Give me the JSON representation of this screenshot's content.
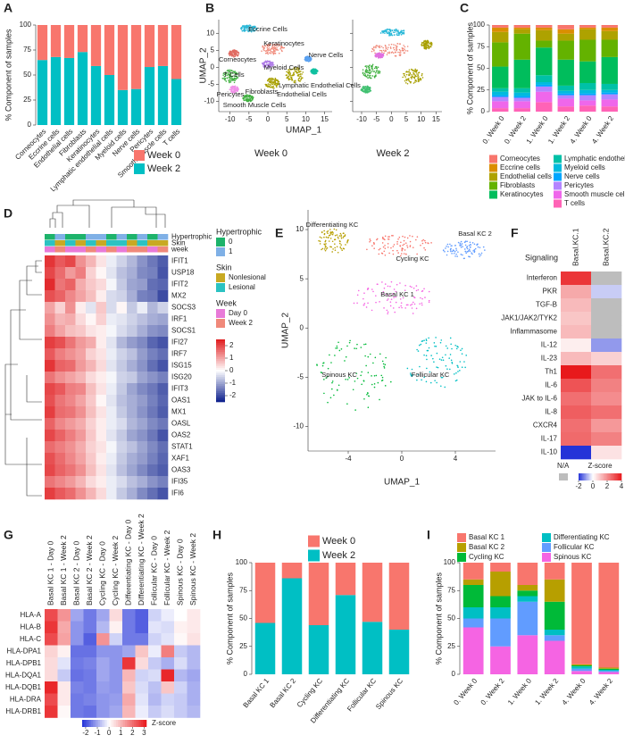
{
  "chart_data": [
    {
      "panel_label": "A",
      "type": "stacked_bar",
      "ylabel": "% Component of samples",
      "categories": [
        "Corneocytes",
        "Eccrine cells",
        "Endothelial cells",
        "Fibroblasts",
        "Keratinocytes",
        "Lymphatic endothelial cells",
        "Myeloid cells",
        "Nerve cells",
        "Pericytes",
        "Smooth muscle cells",
        "T cells"
      ],
      "series": [
        {
          "name": "Week 0",
          "color": "#f8766d",
          "values": [
            35,
            32,
            33,
            27,
            41,
            50,
            65,
            64,
            42,
            41,
            54
          ]
        },
        {
          "name": "Week 2",
          "color": "#00bfc4",
          "values": [
            65,
            68,
            67,
            73,
            59,
            50,
            35,
            36,
            58,
            59,
            46
          ]
        }
      ],
      "ylim": [
        0,
        100
      ],
      "yticks": [
        0,
        25,
        50,
        75,
        100
      ]
    },
    {
      "panel_label": "B",
      "type": "umap",
      "xlabel": "UMAP_1",
      "ylabel": "UMAP_2",
      "facets": [
        "Week 0",
        "Week 2"
      ],
      "xlim": [
        -13,
        17
      ],
      "xticks": [
        -10,
        -5,
        0,
        5,
        10,
        15
      ],
      "ylim": [
        -13,
        14
      ],
      "yticks": [
        -10,
        -5,
        0,
        5,
        10
      ],
      "labels": [
        "Eccrine Cells",
        "Keratinocytes",
        "Corneocytes",
        "Nerve Cells",
        "Myeloid Cells",
        "T Cells",
        "Lymphatic Endothelial Cells",
        "Pericytes",
        "Fibroblasts",
        "Endothelial Cells",
        "Smooth Muscle Cells"
      ]
    },
    {
      "panel_label": "C",
      "type": "stacked_bar",
      "ylabel": "% Component of samples",
      "categories": [
        "0. Week 0",
        "0. Week 2",
        "1. Week 0",
        "1. Week 2",
        "4. Week 0",
        "4. Week 2"
      ],
      "series": [
        {
          "name": "Corneocytes",
          "color": "#f8766d",
          "values": [
            3,
            3,
            3,
            5,
            3,
            3
          ]
        },
        {
          "name": "Eccrine cells",
          "color": "#db8e00",
          "values": [
            5,
            2,
            3,
            5,
            2,
            4
          ]
        },
        {
          "name": "Endothelial cells",
          "color": "#aea200",
          "values": [
            12,
            5,
            12,
            8,
            12,
            10
          ]
        },
        {
          "name": "Fibroblasts",
          "color": "#64b200",
          "values": [
            28,
            30,
            8,
            22,
            25,
            20
          ]
        },
        {
          "name": "Keratinocytes",
          "color": "#00bd5c",
          "values": [
            25,
            33,
            32,
            30,
            25,
            31
          ]
        },
        {
          "name": "Lymphatic endothelial",
          "color": "#00c1a7",
          "values": [
            4,
            5,
            8,
            6,
            8,
            7
          ]
        },
        {
          "name": "Myeloid cells",
          "color": "#00bade",
          "values": [
            4,
            4,
            3,
            3,
            4,
            3
          ]
        },
        {
          "name": "Nerve cells",
          "color": "#00a6ff",
          "values": [
            2,
            2,
            2,
            2,
            2,
            2
          ]
        },
        {
          "name": "Pericytes",
          "color": "#b385ff",
          "values": [
            5,
            4,
            6,
            4,
            6,
            6
          ]
        },
        {
          "name": "Smooth muscle cells",
          "color": "#ef67eb",
          "values": [
            8,
            8,
            12,
            9,
            6,
            8
          ]
        },
        {
          "name": "T cells",
          "color": "#ff63b6",
          "values": [
            4,
            4,
            11,
            6,
            7,
            6
          ]
        }
      ],
      "ylim": [
        0,
        100
      ],
      "yticks": [
        0,
        25,
        50,
        75,
        100
      ]
    },
    {
      "panel_label": "D",
      "type": "heatmap",
      "rows": [
        "IFIT1",
        "USP18",
        "IFIT2",
        "MX2",
        "SOCS3",
        "IRF1",
        "SOCS1",
        "IFI27",
        "IRF7",
        "ISG15",
        "ISG20",
        "IFIT3",
        "OAS1",
        "MX1",
        "OASL",
        "OAS2",
        "STAT1",
        "XAF1",
        "OAS3",
        "IFI35",
        "IFI6"
      ],
      "matrix": [
        [
          2.2,
          1.8,
          2.0,
          1.2,
          0.8,
          0.3,
          -0.2,
          -0.5,
          -0.8,
          -1.2,
          -1.5,
          -1.8
        ],
        [
          2.0,
          1.6,
          1.1,
          1.4,
          0.5,
          0.1,
          -0.3,
          -0.7,
          -0.9,
          -1.3,
          -1.4,
          -1.9
        ],
        [
          2.3,
          1.5,
          1.7,
          0.9,
          0.6,
          0.4,
          -0.1,
          -0.6,
          -1.0,
          -1.1,
          -1.6,
          -1.7
        ],
        [
          1.9,
          1.7,
          1.3,
          1.0,
          0.7,
          0.2,
          -0.4,
          -0.5,
          -0.9,
          -1.4,
          -1.5,
          -2.0
        ],
        [
          1.0,
          0.5,
          1.2,
          0.2,
          -0.3,
          0.6,
          -0.4,
          0.1,
          -0.6,
          -0.2,
          -0.8,
          -0.5
        ],
        [
          1.2,
          0.8,
          0.9,
          0.4,
          0.1,
          0.5,
          -0.2,
          -0.3,
          -0.5,
          -0.7,
          -0.9,
          -1.0
        ],
        [
          1.4,
          1.0,
          0.7,
          0.6,
          0.3,
          0.2,
          -0.1,
          -0.4,
          -0.6,
          -0.9,
          -1.2,
          -1.3
        ],
        [
          2.1,
          1.9,
          1.5,
          1.1,
          0.9,
          0.2,
          -0.3,
          -0.8,
          -1.1,
          -1.3,
          -1.7,
          -1.9
        ],
        [
          1.8,
          1.4,
          1.2,
          1.0,
          0.5,
          0.3,
          -0.2,
          -0.5,
          -0.7,
          -1.1,
          -1.4,
          -1.6
        ],
        [
          2.2,
          1.7,
          1.6,
          1.1,
          0.8,
          0.4,
          -0.3,
          -0.6,
          -0.9,
          -1.2,
          -1.6,
          -1.9
        ],
        [
          1.5,
          1.2,
          1.0,
          0.8,
          0.4,
          0.2,
          -0.1,
          -0.5,
          -0.6,
          -1.0,
          -1.2,
          -1.4
        ],
        [
          2.0,
          1.8,
          1.4,
          1.3,
          0.7,
          0.3,
          -0.2,
          -0.6,
          -1.0,
          -1.3,
          -1.5,
          -1.8
        ],
        [
          1.9,
          1.5,
          1.3,
          1.0,
          0.6,
          0.1,
          -0.3,
          -0.7,
          -0.9,
          -1.1,
          -1.4,
          -1.7
        ],
        [
          2.1,
          1.6,
          1.5,
          1.2,
          0.7,
          0.3,
          -0.2,
          -0.6,
          -0.9,
          -1.2,
          -1.5,
          -1.8
        ],
        [
          1.7,
          1.3,
          1.1,
          0.9,
          0.5,
          0.2,
          -0.2,
          -0.4,
          -0.8,
          -1.0,
          -1.3,
          -1.5
        ],
        [
          2.0,
          1.7,
          1.4,
          1.1,
          0.6,
          0.2,
          -0.3,
          -0.6,
          -1.0,
          -1.2,
          -1.5,
          -1.9
        ],
        [
          1.6,
          1.4,
          1.2,
          0.9,
          0.5,
          0.3,
          -0.1,
          -0.5,
          -0.7,
          -1.0,
          -1.3,
          -1.6
        ],
        [
          1.9,
          1.6,
          1.3,
          1.0,
          0.6,
          0.2,
          -0.2,
          -0.6,
          -0.9,
          -1.1,
          -1.4,
          -1.7
        ],
        [
          2.0,
          1.7,
          1.5,
          1.2,
          0.7,
          0.3,
          -0.3,
          -0.7,
          -1.0,
          -1.3,
          -1.6,
          -1.8
        ],
        [
          1.5,
          1.3,
          1.1,
          0.8,
          0.4,
          0.2,
          -0.2,
          -0.4,
          -0.7,
          -0.9,
          -1.2,
          -1.4
        ],
        [
          2.1,
          1.8,
          1.6,
          1.2,
          0.8,
          0.4,
          -0.2,
          -0.6,
          -0.9,
          -1.3,
          -1.6,
          -1.9
        ]
      ],
      "zlim": [
        -2.5,
        2.5
      ],
      "zticks": [
        2,
        1,
        0,
        -1,
        -2
      ],
      "low_color": "#0b1e8c",
      "high_color": "#e0191c",
      "annotations": [
        {
          "name": "Hypertrophic",
          "legend_title": "Hypertrophic",
          "levels": [
            "0",
            "1"
          ],
          "colors": [
            "#1db36b",
            "#7fb0e6"
          ],
          "values": [
            "0",
            "1",
            "0",
            "0",
            "1",
            "1",
            "0",
            "1",
            "0",
            "1",
            "0",
            "1"
          ]
        },
        {
          "name": "Skin",
          "legend_title": "Skin",
          "levels": [
            "Nonlesional",
            "Lesional"
          ],
          "colors": [
            "#c8a922",
            "#2bc2c2"
          ],
          "values": [
            "Lesional",
            "Nonlesional",
            "Lesional",
            "Nonlesional",
            "Lesional",
            "Nonlesional",
            "Lesional",
            "Lesional",
            "Nonlesional",
            "Lesional",
            "Nonlesional",
            "Nonlesional"
          ]
        },
        {
          "name": "week",
          "legend_title": "Week",
          "levels": [
            "Day 0",
            "Week 2"
          ],
          "colors": [
            "#e87ad8",
            "#f0897a"
          ],
          "values": [
            "Day 0",
            "Week 2",
            "Day 0",
            "Day 0",
            "Week 2",
            "Day 0",
            "Week 2",
            "Day 0",
            "Week 2",
            "Week 2",
            "Day 0",
            "Week 2"
          ]
        }
      ]
    },
    {
      "panel_label": "E",
      "type": "umap",
      "xlabel": "UMAP_1",
      "ylabel": "UMAP_2",
      "xlim": [
        -7,
        7
      ],
      "xticks": [
        -4,
        0,
        4
      ],
      "ylim": [
        -12.5,
        12
      ],
      "yticks": [
        -10,
        -5,
        0,
        5,
        10
      ],
      "labels": [
        "Differentiating KC",
        "Cycling KC",
        "Basal KC 2",
        "Basal KC 1",
        "Spinous KC",
        "Follicular KC"
      ]
    },
    {
      "panel_label": "F",
      "type": "heatmap",
      "row_header": "Signaling",
      "columns": [
        "Basal.KC.1",
        "Basal.KC.2"
      ],
      "rows": [
        "Interferon",
        "PKR",
        "TGF-B",
        "JAK1/JAK2/TYK2",
        "Inflammasome",
        "IL-12",
        "IL-23",
        "Th1",
        "IL-6",
        "JAK to IL-6",
        "IL-8",
        "CXCR4",
        "IL-17",
        "IL-10"
      ],
      "matrix": [
        [
          3.5,
          null
        ],
        [
          1.5,
          -0.5
        ],
        [
          1.2,
          null
        ],
        [
          1.0,
          null
        ],
        [
          1.2,
          null
        ],
        [
          0.3,
          -1.0
        ],
        [
          1.2,
          0.8
        ],
        [
          4.0,
          2.5
        ],
        [
          3.0,
          2.2
        ],
        [
          2.5,
          2.0
        ],
        [
          2.8,
          2.5
        ],
        [
          2.5,
          1.8
        ],
        [
          2.6,
          2.2
        ],
        [
          -2.5,
          0.5
        ]
      ],
      "zlim": [
        -2,
        4
      ],
      "zticks": [
        -2,
        0,
        2,
        4
      ],
      "colorbar_title": "Z-score",
      "na_label": "N/A",
      "na_color": "#bdbdbd",
      "low_color": "#2433d8",
      "high_color": "#e8191c"
    },
    {
      "panel_label": "G",
      "type": "heatmap",
      "columns": [
        "Basal KC 1 - Day 0",
        "Basal KC 1 - Week 2",
        "Basal KC 2 - Day 0",
        "Basal KC 2 - Week 2",
        "Cycling KC - Day 0",
        "Cycling KC - Week 2",
        "Differentiating KC - Day 0",
        "Differentiating KC - Week 2",
        "Follicular KC - Day 0",
        "Follicular KC - Week 2",
        "Spinous KC - Day 0",
        "Spinous KC - Week 2"
      ],
      "rows": [
        "HLA-A",
        "HLA-B",
        "HLA-C",
        "HLA-DPA1",
        "HLA-DPB1",
        "HLA-DQA1",
        "HLA-DQB1",
        "HLA-DRA",
        "HLA-DRB1"
      ],
      "matrix": [
        [
          2.5,
          1.5,
          -1,
          -1.5,
          -1,
          0.5,
          -1.5,
          -1.8,
          -0.5,
          -0.2,
          0,
          0.3
        ],
        [
          2.8,
          1.2,
          -1.2,
          -1.5,
          -0.8,
          0.2,
          -1.5,
          -1.8,
          -0.3,
          -0.4,
          0.2,
          0.3
        ],
        [
          2.5,
          1.3,
          -1.2,
          -1.8,
          1.5,
          -0.5,
          -1.5,
          -1.5,
          -0.5,
          -0.3,
          0.1,
          0.4
        ],
        [
          0.6,
          0.2,
          -1.6,
          -1.6,
          -1.2,
          -1.2,
          -1,
          0.8,
          -0.2,
          1.8,
          -0.6,
          -0.8
        ],
        [
          0.5,
          -0.3,
          -1.5,
          -1.4,
          -1,
          -1.2,
          2.8,
          0.5,
          -0.6,
          -0.9,
          -0.4,
          -0.8
        ],
        [
          0.5,
          -0.6,
          -1.6,
          -1.5,
          -1,
          -1.2,
          1,
          -0.5,
          -0.4,
          3,
          -0.8,
          -1
        ],
        [
          3,
          0.3,
          -1.4,
          -1.5,
          -1.1,
          -1.2,
          0.8,
          -0.4,
          -0.7,
          0.8,
          -0.5,
          -0.9
        ],
        [
          2.5,
          0.3,
          -1.5,
          -1.4,
          -1.2,
          -1.1,
          1.2,
          -0.3,
          -0.8,
          -0.5,
          -0.6,
          -0.9
        ],
        [
          2.8,
          0.1,
          -1.5,
          -1.6,
          -1.2,
          -1,
          1,
          -0.2,
          -0.6,
          -0.4,
          -0.6,
          -0.8
        ]
      ],
      "zlim": [
        -2.3,
        3.2
      ],
      "zticks": [
        -2,
        -1,
        0,
        1,
        2,
        3
      ],
      "colorbar_title": "Z-score",
      "low_color": "#2433d8",
      "high_color": "#e8191c"
    },
    {
      "panel_label": "H",
      "type": "stacked_bar",
      "ylabel": "% Component of samples",
      "categories": [
        "Basal KC 1",
        "Basal KC 2",
        "Cycling KC",
        "Differentiating KC",
        "Follicular KC",
        "Spinous KC"
      ],
      "series": [
        {
          "name": "Week 0",
          "color": "#f8766d",
          "values": [
            54,
            14,
            56,
            29,
            53,
            60
          ]
        },
        {
          "name": "Week 2",
          "color": "#00bfc4",
          "values": [
            46,
            86,
            44,
            71,
            47,
            40
          ]
        }
      ],
      "ylim": [
        0,
        100
      ],
      "yticks": [
        0,
        25,
        50,
        75,
        100
      ]
    },
    {
      "panel_label": "I",
      "type": "stacked_bar",
      "ylabel": "% Component of samples",
      "categories": [
        "0. Week 0",
        "0. Week 2",
        "1. Week 0",
        "1. Week 2",
        "4. Week 0",
        "4. Week 2"
      ],
      "series": [
        {
          "name": "Basal KC 1",
          "color": "#f8766d",
          "values": [
            15,
            8,
            20,
            15,
            91,
            94
          ]
        },
        {
          "name": "Basal KC 2",
          "color": "#b79f00",
          "values": [
            5,
            22,
            5,
            20,
            1,
            1
          ]
        },
        {
          "name": "Cycling KC",
          "color": "#00ba38",
          "values": [
            20,
            10,
            5,
            25,
            1,
            1
          ]
        },
        {
          "name": "Differentiating KC",
          "color": "#00bfc4",
          "values": [
            10,
            10,
            5,
            5,
            2,
            1
          ]
        },
        {
          "name": "Follicular KC",
          "color": "#619cff",
          "values": [
            8,
            25,
            30,
            5,
            2,
            1
          ]
        },
        {
          "name": "Spinous KC",
          "color": "#f564e3",
          "values": [
            42,
            25,
            35,
            30,
            3,
            2
          ]
        }
      ],
      "ylim": [
        0,
        100
      ],
      "yticks": [
        0,
        25,
        50,
        75,
        100
      ]
    }
  ]
}
